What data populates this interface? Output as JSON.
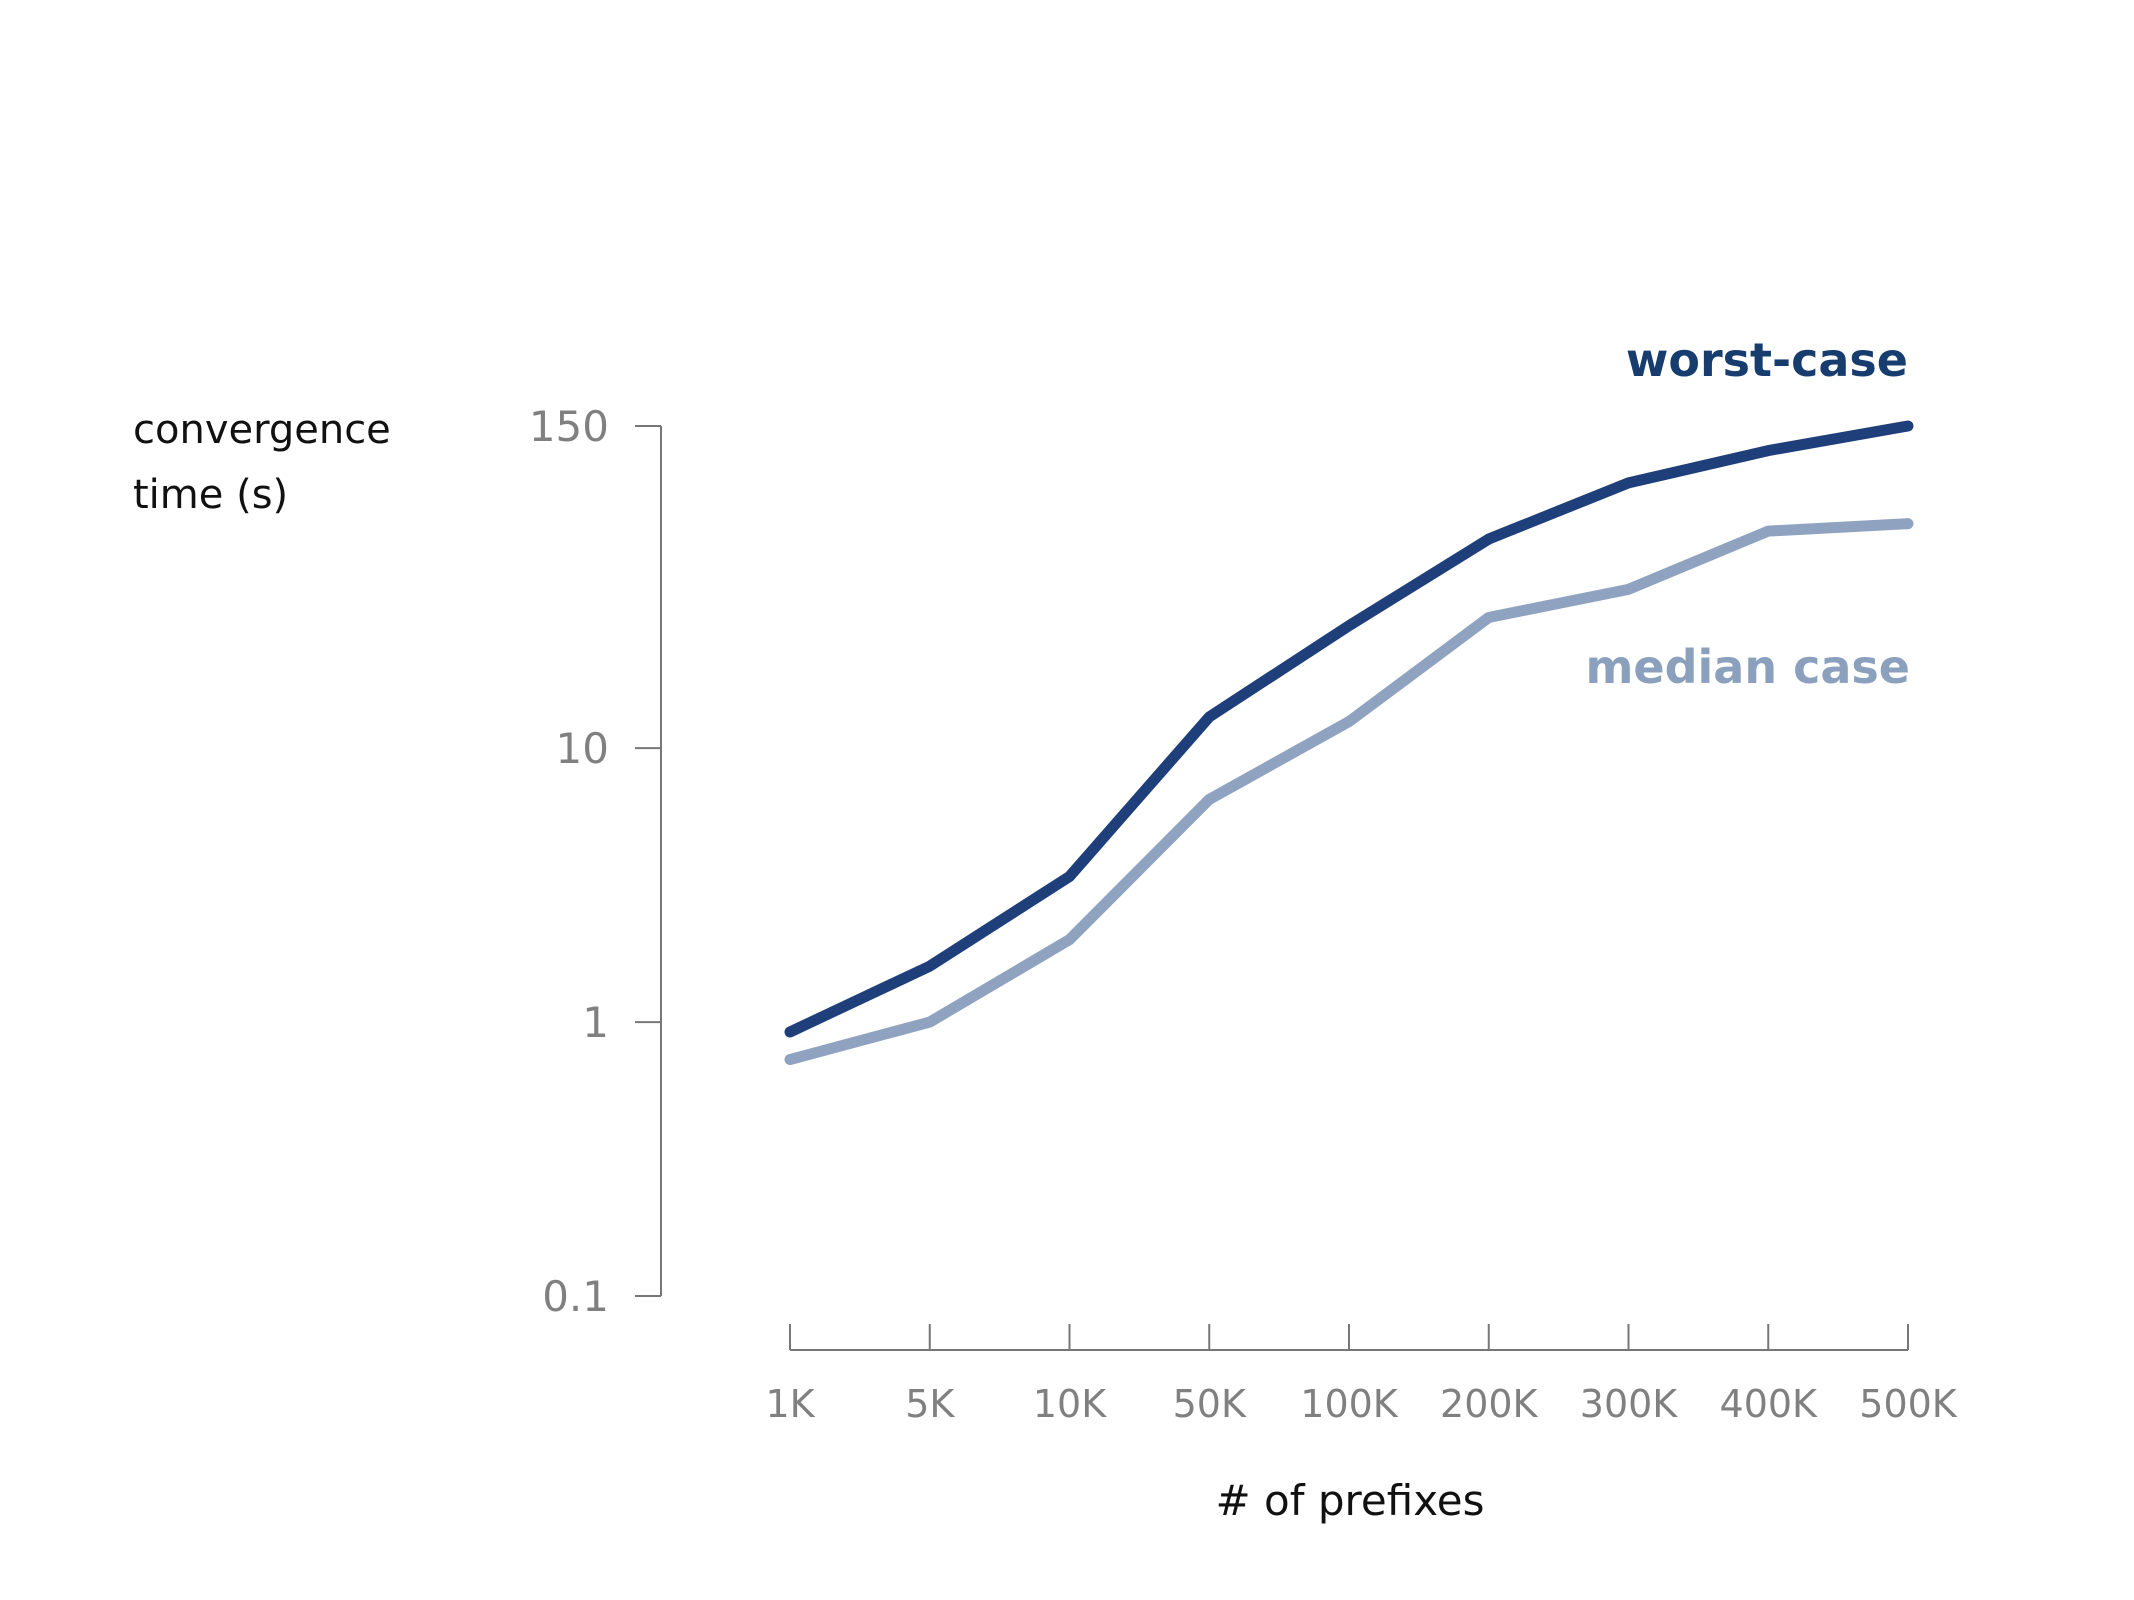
{
  "chart_data": {
    "type": "line",
    "title": "",
    "ylabel": [
      "convergence",
      "time (s)"
    ],
    "xlabel": "# of prefixes",
    "yscale": "log",
    "ylim": [
      0.1,
      150
    ],
    "yticks": [
      {
        "value": 0.1,
        "label": "0.1"
      },
      {
        "value": 1,
        "label": "1"
      },
      {
        "value": 10,
        "label": "10"
      },
      {
        "value": 150,
        "label": "150"
      }
    ],
    "categories": [
      "1K",
      "5K",
      "10K",
      "50K",
      "100K",
      "200K",
      "300K",
      "400K",
      "500K"
    ],
    "series": [
      {
        "name": "worst-case",
        "color": "#1f3f7a",
        "label_color": "#173c6e",
        "values": [
          0.92,
          1.6,
          3.4,
          13,
          28,
          58,
          93,
          122,
          150
        ]
      },
      {
        "name": "median case",
        "color": "#8fa3c0",
        "label_color": "#8aa0bd",
        "values": [
          0.73,
          1.0,
          2.0,
          6.5,
          12.5,
          30,
          38,
          62,
          66
        ]
      }
    ],
    "legend": "inline-right",
    "grid": false
  }
}
